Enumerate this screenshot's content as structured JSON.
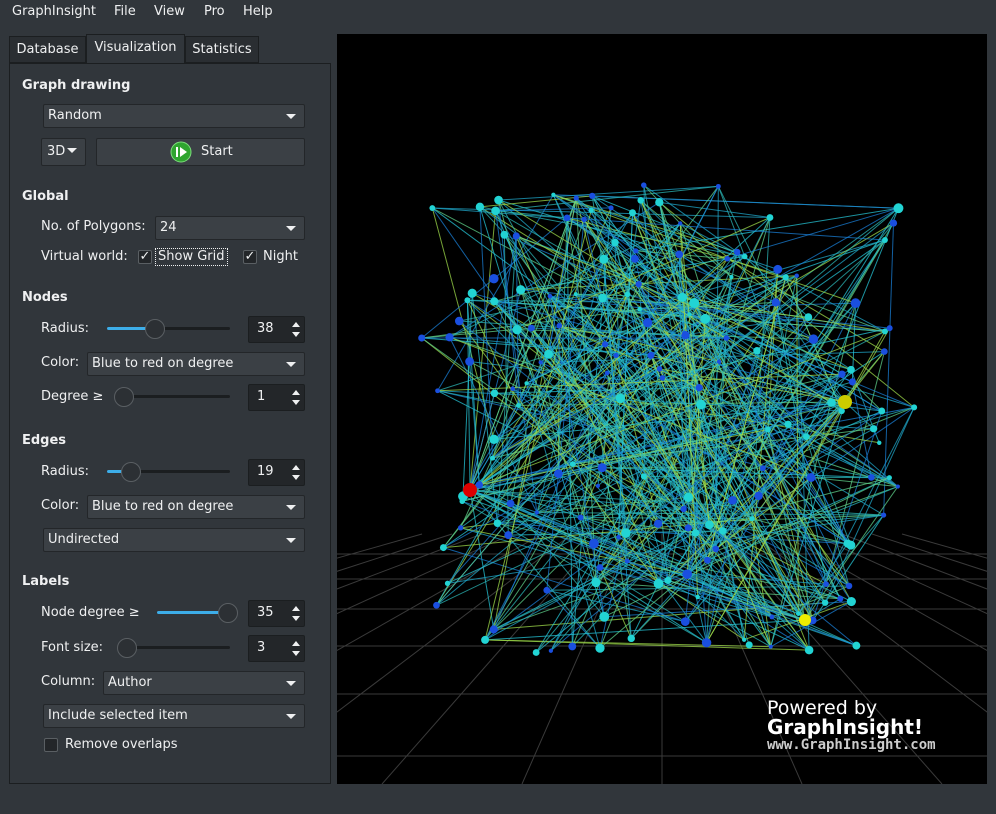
{
  "menu": [
    "GraphInsight",
    "File",
    "View",
    "Pro",
    "Help"
  ],
  "tabs": [
    "Database",
    "Visualization",
    "Statistics"
  ],
  "graph_drawing": {
    "title": "Graph drawing",
    "layout": "Random",
    "dimension": "3D",
    "start": "Start"
  },
  "global": {
    "title": "Global",
    "polygons_label": "No. of Polygons:",
    "polygons": "24",
    "virtual_world_label": "Virtual world:",
    "show_grid": "Show Grid",
    "night": "Night"
  },
  "nodes": {
    "title": "Nodes",
    "radius_label": "Radius:",
    "radius": 38,
    "color_label": "Color:",
    "color": "Blue to red on degree",
    "degree_label": "Degree ≥",
    "degree": 1
  },
  "edges": {
    "title": "Edges",
    "radius_label": "Radius:",
    "radius": 19,
    "color_label": "Color:",
    "color": "Blue to red on degree",
    "direction": "Undirected"
  },
  "labels": {
    "title": "Labels",
    "node_degree_label": "Node degree ≥",
    "node_degree": 35,
    "font_size_label": "Font size:",
    "font_size": 3,
    "column_label": "Column:",
    "column": "Author",
    "include": "Include selected item",
    "remove_overlaps": "Remove overlaps"
  },
  "watermark": {
    "line1": "Powered by",
    "line2": "GraphInsight!",
    "line3": "www.GraphInsight.com"
  }
}
